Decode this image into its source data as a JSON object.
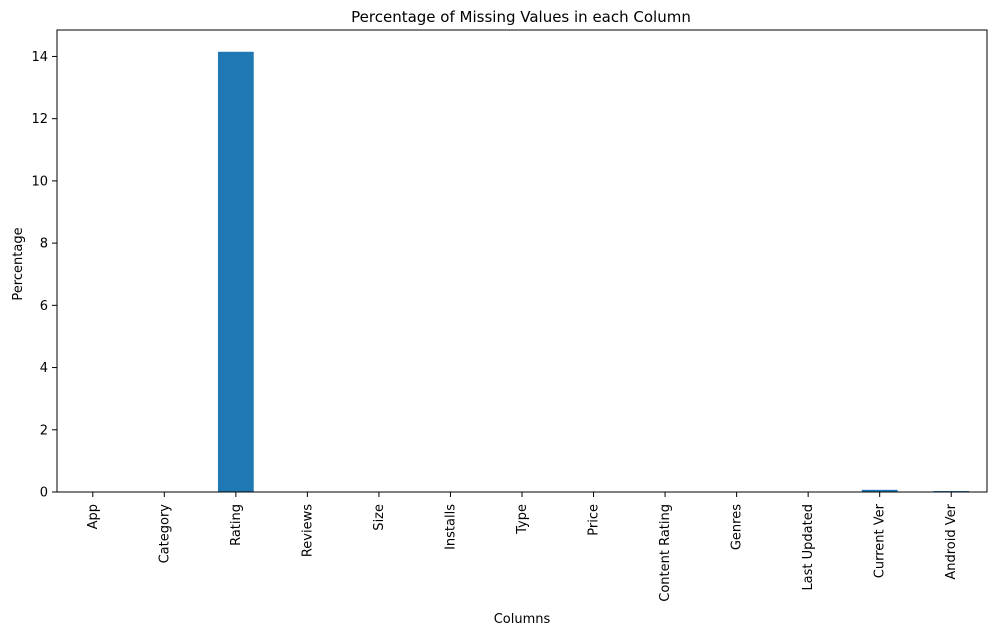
{
  "chart_data": {
    "type": "bar",
    "title": "Percentage of Missing Values in each Column",
    "xlabel": "Columns",
    "ylabel": "Percentage",
    "categories": [
      "App",
      "Category",
      "Rating",
      "Reviews",
      "Size",
      "Installs",
      "Type",
      "Price",
      "Content Rating",
      "Genres",
      "Last Updated",
      "Current Ver",
      "Android Ver"
    ],
    "values": [
      0,
      0,
      14.15,
      0,
      0,
      0,
      0.01,
      0,
      0.01,
      0,
      0,
      0.07,
      0.03
    ],
    "ylim": [
      0,
      14.85
    ],
    "yticks": [
      0,
      2,
      4,
      6,
      8,
      10,
      12,
      14
    ],
    "grid": false,
    "bar_color": "#1f77b4"
  }
}
